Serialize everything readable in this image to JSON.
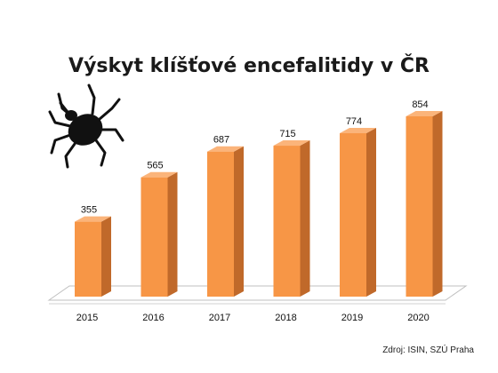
{
  "chart_data": {
    "type": "bar",
    "title": "Výskyt klíšťové encefalitidy v ČR",
    "categories": [
      "2015",
      "2016",
      "2017",
      "2018",
      "2019",
      "2020"
    ],
    "values": [
      355,
      565,
      687,
      715,
      774,
      854
    ],
    "xlabel": "",
    "ylabel": "",
    "ylim": [
      0,
      900
    ],
    "grid": false,
    "legend": "none",
    "bar_color": "#f79646",
    "bar_side_color": "#c0692a",
    "bar_top_color": "#fbb47a"
  },
  "source": "Zdroj: ISIN, SZÚ Praha",
  "icons": {
    "illustration": "tick-insect-icon"
  }
}
